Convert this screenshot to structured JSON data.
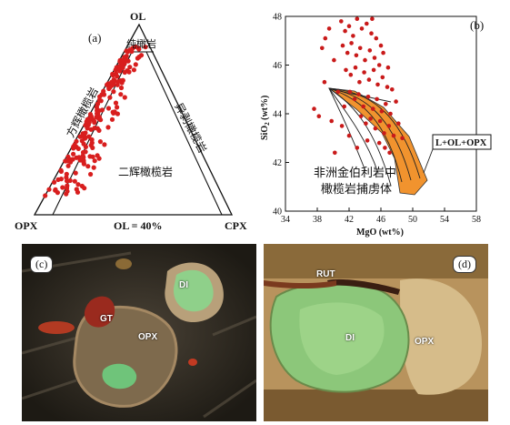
{
  "panel_a": {
    "label": "(a)",
    "apex_top": "OL",
    "apex_left": "OPX",
    "apex_right": "CPX",
    "baseline_label": "OL = 40%",
    "field_dunite": "纯橄岩",
    "field_harzburgite": "方辉橄榄岩",
    "field_lherzolite": "二辉橄榄岩",
    "field_wehrlite": "异剥橄榄岩",
    "colors": {
      "points": "#d81e1e",
      "lines": "#111111"
    }
  },
  "panel_b": {
    "label": "(b)",
    "caption_line1": "非洲金伯利岩中",
    "caption_line2": "橄榄岩捕虏体",
    "box_label": "L+OL+OPX",
    "colors": {
      "points": "#c91a1a",
      "field": "#f08a1c"
    }
  },
  "panel_c": {
    "label": "(c)",
    "minerals": {
      "di": "DI",
      "gt": "GT",
      "opx": "OPX"
    }
  },
  "panel_d": {
    "label": "(d)",
    "minerals": {
      "rut": "RUT",
      "di": "DI",
      "opx": "OPX"
    }
  },
  "chart_data": {
    "type": "scatter",
    "title": "",
    "xlabel": "MgO (wt%)",
    "ylabel": "SiO2 (wt%)",
    "xlim": [
      34,
      58
    ],
    "ylim": [
      40,
      48
    ],
    "x_ticks": [
      "34",
      "38",
      "42",
      "46",
      "50",
      "54",
      "58"
    ],
    "y_ticks": [
      "40",
      "42",
      "44",
      "46",
      "48"
    ],
    "ylabel_main": "SiO",
    "ylabel_sub": "2",
    "ylabel_tail": " (wt%)",
    "grid": false,
    "series": [
      {
        "points": [
          [
            41.0,
            47.8
          ],
          [
            41.5,
            47.4
          ],
          [
            42.0,
            47.6
          ],
          [
            42.5,
            47.2
          ],
          [
            43.0,
            47.9
          ],
          [
            43.6,
            47.5
          ],
          [
            44.2,
            47.7
          ],
          [
            44.8,
            47.3
          ],
          [
            41.2,
            46.8
          ],
          [
            41.8,
            46.5
          ],
          [
            42.3,
            46.9
          ],
          [
            42.9,
            46.4
          ],
          [
            43.4,
            46.7
          ],
          [
            44.0,
            46.2
          ],
          [
            44.6,
            46.6
          ],
          [
            45.2,
            46.3
          ],
          [
            45.8,
            46.0
          ],
          [
            46.3,
            46.5
          ],
          [
            41.6,
            45.8
          ],
          [
            42.2,
            45.6
          ],
          [
            42.8,
            45.9
          ],
          [
            43.3,
            45.3
          ],
          [
            43.9,
            45.7
          ],
          [
            44.5,
            45.4
          ],
          [
            45.1,
            45.8
          ],
          [
            45.6,
            45.2
          ],
          [
            46.2,
            45.5
          ],
          [
            46.8,
            45.1
          ],
          [
            42.1,
            44.9
          ],
          [
            42.7,
            44.6
          ],
          [
            43.2,
            44.8
          ],
          [
            43.8,
            44.3
          ],
          [
            44.4,
            44.7
          ],
          [
            45.0,
            44.2
          ],
          [
            45.5,
            44.6
          ],
          [
            46.1,
            44.1
          ],
          [
            46.6,
            44.4
          ],
          [
            47.2,
            44.0
          ],
          [
            43.5,
            43.9
          ],
          [
            44.1,
            43.6
          ],
          [
            44.7,
            43.8
          ],
          [
            45.3,
            43.4
          ],
          [
            45.9,
            43.7
          ],
          [
            46.4,
            43.2
          ],
          [
            47.0,
            43.5
          ],
          [
            47.6,
            43.1
          ],
          [
            45.8,
            42.8
          ],
          [
            46.5,
            42.6
          ],
          [
            47.1,
            42.4
          ],
          [
            39.5,
            47.5
          ],
          [
            40.1,
            46.2
          ],
          [
            38.9,
            45.3
          ],
          [
            40.6,
            44.9
          ],
          [
            41.4,
            44.3
          ],
          [
            39.8,
            43.7
          ],
          [
            37.6,
            44.2
          ],
          [
            40.2,
            42.4
          ],
          [
            42.0,
            43.1
          ],
          [
            43.0,
            42.6
          ],
          [
            48.2,
            43.6
          ],
          [
            48.7,
            43.0
          ],
          [
            39.0,
            47.1
          ],
          [
            38.6,
            46.7
          ],
          [
            44.9,
            47.9
          ],
          [
            45.4,
            47.1
          ],
          [
            46.0,
            46.8
          ],
          [
            46.9,
            45.9
          ],
          [
            47.4,
            45.0
          ],
          [
            41.1,
            43.5
          ],
          [
            44.3,
            42.9
          ],
          [
            38.2,
            43.9
          ],
          [
            47.9,
            44.5
          ]
        ]
      }
    ]
  }
}
